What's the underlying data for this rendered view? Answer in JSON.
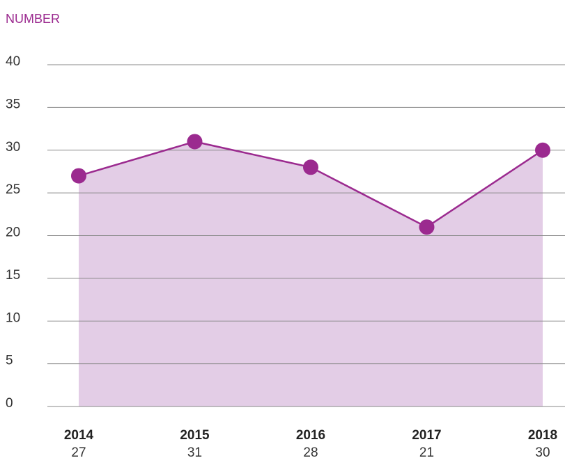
{
  "chart_data": {
    "type": "area",
    "ylabel": "NUMBER",
    "categories": [
      "2014",
      "2015",
      "2016",
      "2017",
      "2018"
    ],
    "values": [
      27,
      31,
      28,
      21,
      30
    ],
    "color": "#9b2a8f",
    "fill_color": "#e3cde6",
    "ylim": [
      0,
      40
    ],
    "yticks": [
      0,
      5,
      10,
      15,
      20,
      25,
      30,
      35,
      40
    ],
    "grid": true
  }
}
